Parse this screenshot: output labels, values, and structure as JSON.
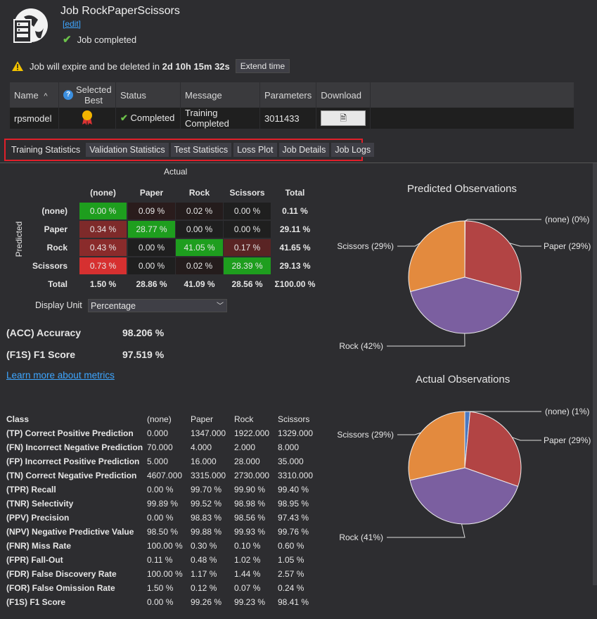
{
  "header": {
    "title": "Job RockPaperScissors",
    "edit_label": "[edit]",
    "status": "Job completed"
  },
  "expire": {
    "prefix": "Job will expire and be deleted in",
    "remaining": "2d 10h 15m 32s",
    "extend_label": "Extend time"
  },
  "job_table": {
    "headers": {
      "name": "Name",
      "sort": "^",
      "selected_best": "Selected Best",
      "status": "Status",
      "message": "Message",
      "parameters": "Parameters",
      "download": "Download"
    },
    "row": {
      "name": "rpsmodel",
      "status": "Completed",
      "message": "Training Completed",
      "parameters": "3011433"
    }
  },
  "tabs": [
    "Training Statistics",
    "Validation Statistics",
    "Test Statistics",
    "Loss Plot",
    "Job Details",
    "Job Logs"
  ],
  "confusion": {
    "actual_label": "Actual",
    "predicted_label": "Predicted",
    "columns": [
      "(none)",
      "Paper",
      "Rock",
      "Scissors",
      "Total"
    ],
    "rows": [
      {
        "label": "(none)",
        "cells": [
          "0.00 %",
          "0.09 %",
          "0.02 %",
          "0.00 %"
        ],
        "total": "0.11 %"
      },
      {
        "label": "Paper",
        "cells": [
          "0.34 %",
          "28.77 %",
          "0.00 %",
          "0.00 %"
        ],
        "total": "29.11 %"
      },
      {
        "label": "Rock",
        "cells": [
          "0.43 %",
          "0.00 %",
          "41.05 %",
          "0.17 %"
        ],
        "total": "41.65 %"
      },
      {
        "label": "Scissors",
        "cells": [
          "0.73 %",
          "0.00 %",
          "0.02 %",
          "28.39 %"
        ],
        "total": "29.13 %"
      }
    ],
    "totals": {
      "label": "Total",
      "cells": [
        "1.50 %",
        "28.86 %",
        "41.09 %",
        "28.56 %"
      ],
      "total": "Σ100.00 %"
    },
    "cell_colors": [
      [
        "#1e9e1e",
        "#2a1c1c",
        "#241c1c",
        "#1f1f1f"
      ],
      [
        "#7e2a2a",
        "#1e9e1e",
        "#1f1f1f",
        "#1f1f1f"
      ],
      [
        "#8a2b2b",
        "#1f1f1f",
        "#1e9e1e",
        "#5a2424"
      ],
      [
        "#d63030",
        "#1f1f1f",
        "#241c1c",
        "#1e9e1e"
      ]
    ]
  },
  "display_unit": {
    "label": "Display Unit",
    "value": "Percentage"
  },
  "metrics": {
    "acc_label": "(ACC) Accuracy",
    "acc_value": "98.206 %",
    "f1_label": "(F1S) F1 Score",
    "f1_value": "97.519 %"
  },
  "learn_more": "Learn more about metrics",
  "stats": {
    "header": [
      "Class",
      "(none)",
      "Paper",
      "Rock",
      "Scissors"
    ],
    "rows": [
      [
        "(TP) Correct Positive Prediction",
        "0.000",
        "1347.000",
        "1922.000",
        "1329.000"
      ],
      [
        "(FN) Incorrect Negative Prediction",
        "70.000",
        "4.000",
        "2.000",
        "8.000"
      ],
      [
        "(FP) Incorrect Positive Prediction",
        "5.000",
        "16.000",
        "28.000",
        "35.000"
      ],
      [
        "(TN) Correct Negative Prediction",
        "4607.000",
        "3315.000",
        "2730.000",
        "3310.000"
      ],
      [
        "(TPR) Recall",
        "0.00 %",
        "99.70 %",
        "99.90 %",
        "99.40 %"
      ],
      [
        "(TNR) Selectivity",
        "99.89 %",
        "99.52 %",
        "98.98 %",
        "98.95 %"
      ],
      [
        "(PPV) Precision",
        "0.00 %",
        "98.83 %",
        "98.56 %",
        "97.43 %"
      ],
      [
        "(NPV) Negative Predictive Value",
        "98.50 %",
        "99.88 %",
        "99.93 %",
        "99.76 %"
      ],
      [
        "(FNR) Miss Rate",
        "100.00 %",
        "0.30 %",
        "0.10 %",
        "0.60 %"
      ],
      [
        "(FPR) Fall-Out",
        "0.11 %",
        "0.48 %",
        "1.02 %",
        "1.05 %"
      ],
      [
        "(FDR) False Discovery Rate",
        "100.00 %",
        "1.17 %",
        "1.44 %",
        "2.57 %"
      ],
      [
        "(FOR) False Omission Rate",
        "1.50 %",
        "0.12 %",
        "0.07 %",
        "0.24 %"
      ],
      [
        "(F1S) F1 Score",
        "0.00 %",
        "99.26 %",
        "99.23 %",
        "98.41 %"
      ]
    ]
  },
  "colors": {
    "none": "#4a78c0",
    "paper": "#b24444",
    "rock": "#7b5fa0",
    "scissors": "#e38a3e",
    "accent_green": "#1e9e1e",
    "tab_highlight": "#e0202a"
  },
  "chart_data": [
    {
      "type": "pie",
      "title": "Predicted Observations",
      "labels": [
        "(none) (0%)",
        "Paper (29%)",
        "Rock (42%)",
        "Scissors (29%)"
      ],
      "categories": [
        "(none)",
        "Paper",
        "Rock",
        "Scissors"
      ],
      "values": [
        0.11,
        29.11,
        41.65,
        29.13
      ],
      "colors": [
        "#4a78c0",
        "#b24444",
        "#7b5fa0",
        "#e38a3e"
      ]
    },
    {
      "type": "pie",
      "title": "Actual Observations",
      "labels": [
        "(none) (1%)",
        "Paper (29%)",
        "Rock (41%)",
        "Scissors (29%)"
      ],
      "categories": [
        "(none)",
        "Paper",
        "Rock",
        "Scissors"
      ],
      "values": [
        1.5,
        28.86,
        41.09,
        28.56
      ],
      "colors": [
        "#4a78c0",
        "#b24444",
        "#7b5fa0",
        "#e38a3e"
      ]
    }
  ]
}
